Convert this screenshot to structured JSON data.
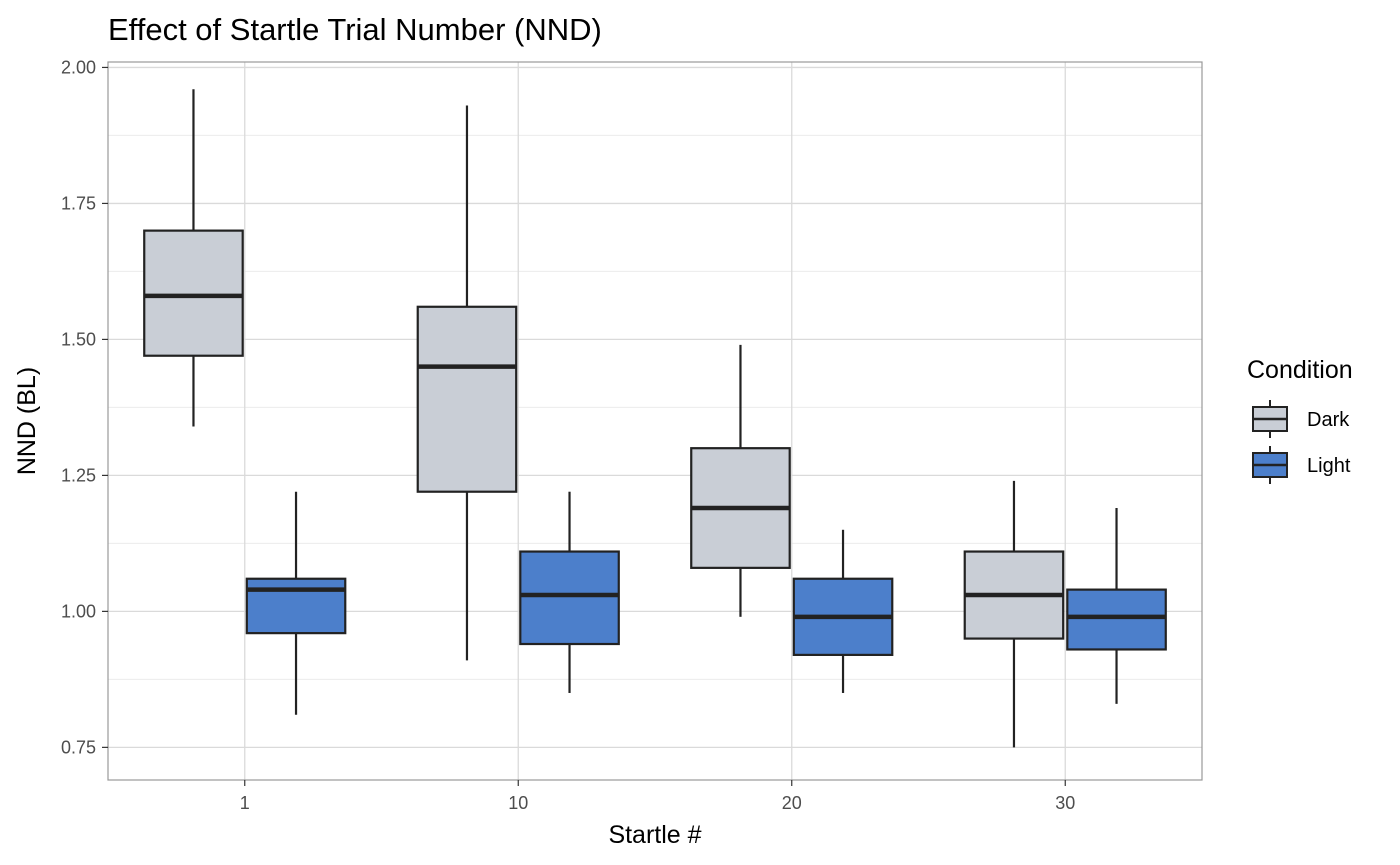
{
  "chart_data": {
    "type": "boxplot",
    "title": "Effect of Startle Trial Number (NND)",
    "xlabel": "Startle #",
    "ylabel": "NND (BL)",
    "categories": [
      "1",
      "10",
      "20",
      "30"
    ],
    "ylim": [
      0.69,
      2.01
    ],
    "yticks": [
      "0.75",
      "1.00",
      "1.25",
      "1.50",
      "1.75",
      "2.00"
    ],
    "ytick_values": [
      0.75,
      1.0,
      1.25,
      1.5,
      1.75,
      2.0
    ],
    "grid": true,
    "legend": {
      "title": "Condition",
      "position": "right",
      "entries": [
        "Dark",
        "Light"
      ]
    },
    "series": [
      {
        "name": "Dark",
        "color": "#c9ced6",
        "boxes": [
          {
            "min": 1.34,
            "q1": 1.47,
            "median": 1.58,
            "q3": 1.7,
            "max": 1.96
          },
          {
            "min": 0.91,
            "q1": 1.22,
            "median": 1.45,
            "q3": 1.56,
            "max": 1.93
          },
          {
            "min": 0.99,
            "q1": 1.08,
            "median": 1.19,
            "q3": 1.3,
            "max": 1.49
          },
          {
            "min": 0.75,
            "q1": 0.95,
            "median": 1.03,
            "q3": 1.11,
            "max": 1.24
          }
        ]
      },
      {
        "name": "Light",
        "color": "#4c7fcb",
        "boxes": [
          {
            "min": 0.81,
            "q1": 0.96,
            "median": 1.04,
            "q3": 1.06,
            "max": 1.22
          },
          {
            "min": 0.85,
            "q1": 0.94,
            "median": 1.03,
            "q3": 1.11,
            "max": 1.22
          },
          {
            "min": 0.85,
            "q1": 0.92,
            "median": 0.99,
            "q3": 1.06,
            "max": 1.15
          },
          {
            "min": 0.83,
            "q1": 0.93,
            "median": 0.99,
            "q3": 1.04,
            "max": 1.19
          }
        ]
      }
    ]
  }
}
